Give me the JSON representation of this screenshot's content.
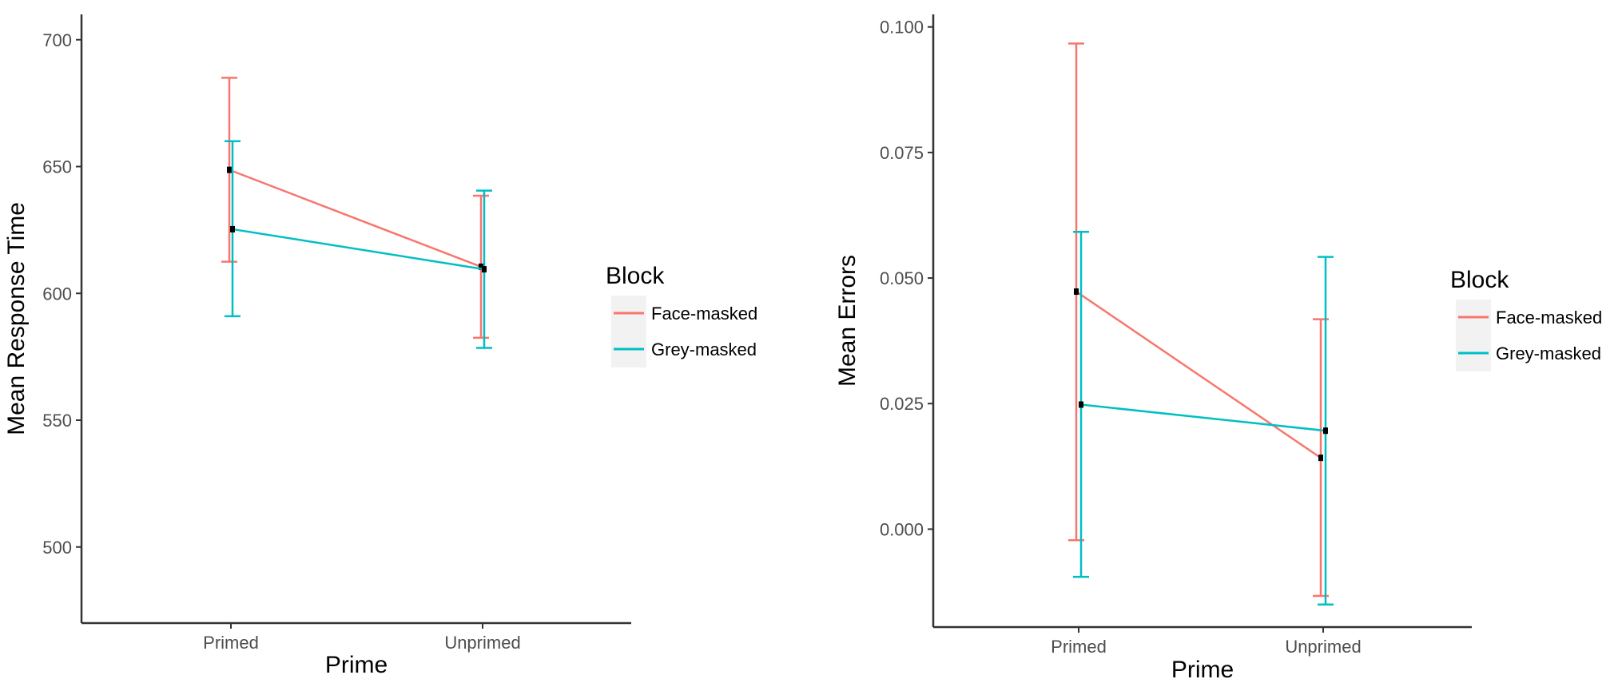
{
  "chart_data": [
    {
      "type": "line",
      "xlabel": "Prime",
      "ylabel": "Mean Response Time",
      "categories": [
        "Primed",
        "Unprimed"
      ],
      "ylim": [
        470,
        710
      ],
      "yticks": [
        500,
        550,
        600,
        650,
        700
      ],
      "ytick_labels": [
        "500",
        "550",
        "600",
        "650",
        "700"
      ],
      "grid": false,
      "legend": {
        "title": "Block",
        "position": "right"
      },
      "series": [
        {
          "name": "Face-masked",
          "color": "#F8766D",
          "values": [
            648.7,
            610.5
          ],
          "lower": [
            612.5,
            582.5
          ],
          "upper": [
            685.0,
            638.5
          ]
        },
        {
          "name": "Grey-masked",
          "color": "#00BFC4",
          "values": [
            625.3,
            609.5
          ],
          "lower": [
            591.0,
            578.5
          ],
          "upper": [
            660.0,
            640.5
          ]
        }
      ]
    },
    {
      "type": "line",
      "xlabel": "Prime",
      "ylabel": "Mean Errors",
      "categories": [
        "Primed",
        "Unprimed"
      ],
      "ylim": [
        -0.0195,
        0.1025
      ],
      "yticks": [
        0.0,
        0.025,
        0.05,
        0.075,
        0.1
      ],
      "ytick_labels": [
        "0.000",
        "0.025",
        "0.050",
        "0.075",
        "0.100"
      ],
      "grid": false,
      "legend": {
        "title": "Block",
        "position": "right"
      },
      "series": [
        {
          "name": "Face-masked",
          "color": "#F8766D",
          "values": [
            0.0473,
            0.0142
          ],
          "lower": [
            -0.0022,
            -0.0133
          ],
          "upper": [
            0.0967,
            0.0418
          ]
        },
        {
          "name": "Grey-masked",
          "color": "#00BFC4",
          "values": [
            0.0248,
            0.0196
          ],
          "lower": [
            -0.0095,
            -0.015
          ],
          "upper": [
            0.0592,
            0.0542
          ]
        }
      ]
    }
  ]
}
